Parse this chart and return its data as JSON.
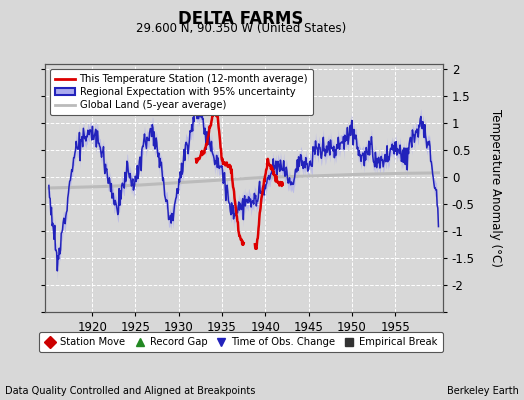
{
  "title": "DELTA FARMS",
  "subtitle": "29.600 N, 90.350 W (United States)",
  "xlabel_bottom_left": "Data Quality Controlled and Aligned at Breakpoints",
  "xlabel_bottom_right": "Berkeley Earth",
  "ylabel": "Temperature Anomaly (°C)",
  "xlim": [
    1914.5,
    1960.5
  ],
  "ylim": [
    -2.5,
    2.1
  ],
  "yticks": [
    -2.5,
    -2.0,
    -1.5,
    -1.0,
    -0.5,
    0.0,
    0.5,
    1.0,
    1.5,
    2.0
  ],
  "ytick_labels": [
    "",
    "-2",
    "-1.5",
    "-1",
    "-0.5",
    "0",
    "0.5",
    "1",
    "1.5",
    "2"
  ],
  "xticks": [
    1920,
    1925,
    1930,
    1935,
    1940,
    1945,
    1950,
    1955
  ],
  "bg_color": "#d8d8d8",
  "plot_bg_color": "#d8d8d8",
  "grid_color": "#ffffff",
  "regional_color": "#2222bb",
  "regional_fill_color": "#aaaaee",
  "station_color": "#dd0000",
  "global_color": "#bbbbbb",
  "legend_items": [
    {
      "label": "This Temperature Station (12-month average)",
      "color": "#dd0000",
      "lw": 2
    },
    {
      "label": "Regional Expectation with 95% uncertainty",
      "color": "#2222bb",
      "fill": "#aaaaee"
    },
    {
      "label": "Global Land (5-year average)",
      "color": "#bbbbbb",
      "lw": 2
    }
  ],
  "bottom_legend": [
    {
      "label": "Station Move",
      "marker": "D",
      "color": "#cc0000"
    },
    {
      "label": "Record Gap",
      "marker": "^",
      "color": "#228822"
    },
    {
      "label": "Time of Obs. Change",
      "marker": "v",
      "color": "#2222bb"
    },
    {
      "label": "Empirical Break",
      "marker": "s",
      "color": "#333333"
    }
  ],
  "regional_xp": [
    1915,
    1916,
    1917,
    1918,
    1919,
    1920,
    1921,
    1922,
    1923,
    1924,
    1925,
    1926,
    1927,
    1928,
    1929,
    1930,
    1931,
    1932,
    1933,
    1934,
    1935,
    1936,
    1937,
    1938,
    1939,
    1940,
    1941,
    1942,
    1943,
    1944,
    1945,
    1946,
    1947,
    1948,
    1949,
    1950,
    1951,
    1952,
    1953,
    1954,
    1955,
    1956,
    1957,
    1958,
    1959,
    1960
  ],
  "regional_yp": [
    -0.2,
    -1.65,
    -0.5,
    0.5,
    0.7,
    0.85,
    0.6,
    -0.1,
    -0.6,
    0.15,
    -0.15,
    0.65,
    0.9,
    0.2,
    -0.85,
    -0.1,
    0.6,
    1.3,
    0.9,
    0.45,
    0.15,
    -0.65,
    -0.55,
    -0.5,
    -0.4,
    -0.2,
    0.15,
    0.2,
    -0.1,
    0.35,
    0.15,
    0.55,
    0.55,
    0.5,
    0.65,
    0.95,
    0.35,
    0.5,
    0.25,
    0.35,
    0.55,
    0.35,
    0.75,
    1.0,
    0.5,
    -0.6
  ],
  "global_xp": [
    1915,
    1920,
    1925,
    1930,
    1935,
    1940,
    1945,
    1950,
    1955,
    1960
  ],
  "global_yp": [
    -0.2,
    -0.18,
    -0.15,
    -0.1,
    -0.05,
    0.0,
    0.02,
    0.05,
    0.07,
    0.08
  ],
  "station1_x": [
    1932.0,
    1933.0,
    1934.0,
    1934.5,
    1935.0,
    1935.5,
    1936.0,
    1937.0,
    1937.5
  ],
  "station1_y": [
    0.3,
    0.5,
    1.2,
    1.15,
    0.3,
    0.25,
    0.2,
    -1.1,
    -1.25
  ],
  "station2_x": [
    1938.8,
    1939.0,
    1939.5,
    1940.0,
    1940.3,
    1940.8,
    1941.5,
    1942.0
  ],
  "station2_y": [
    -1.3,
    -1.32,
    -0.45,
    0.05,
    0.3,
    0.15,
    -0.1,
    -0.15
  ]
}
